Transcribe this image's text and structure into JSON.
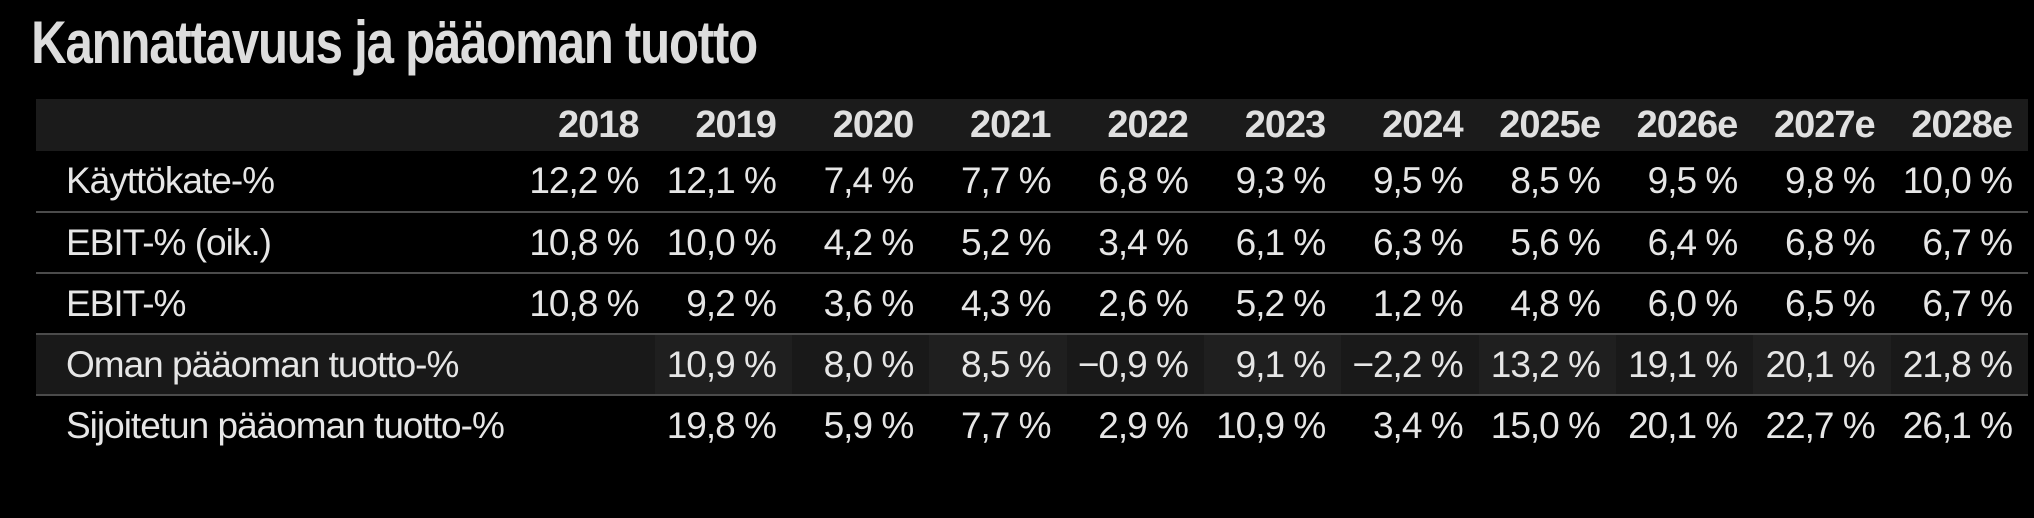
{
  "page": {
    "title": "Kannattavuus ja pääoman tuotto",
    "colors": {
      "background": "#000000",
      "header_row_bg": "#1b1b1b",
      "highlight_row_bg": "#191919",
      "highlight_row_alt_cell_bg": "#1f1f1f",
      "text": "#e6e6e6",
      "divider": "#4b4b4b"
    }
  },
  "chart_data": {
    "type": "table",
    "title": "Kannattavuus ja pääoman tuotto",
    "columns": [
      "",
      "2018",
      "2019",
      "2020",
      "2021",
      "2022",
      "2023",
      "2024",
      "2025e",
      "2026e",
      "2027e",
      "2028e"
    ],
    "rows": [
      {
        "label": "Käyttökate-%",
        "highlighted": false,
        "values": [
          "12,2 %",
          "12,1 %",
          "7,4 %",
          "7,7 %",
          "6,8 %",
          "9,3 %",
          "9,5 %",
          "8,5 %",
          "9,5 %",
          "9,8 %",
          "10,0 %"
        ]
      },
      {
        "label": "EBIT-% (oik.)",
        "highlighted": false,
        "values": [
          "10,8 %",
          "10,0 %",
          "4,2 %",
          "5,2 %",
          "3,4 %",
          "6,1 %",
          "6,3 %",
          "5,6 %",
          "6,4 %",
          "6,8 %",
          "6,7 %"
        ]
      },
      {
        "label": "EBIT-%",
        "highlighted": false,
        "values": [
          "10,8 %",
          "9,2 %",
          "3,6 %",
          "4,3 %",
          "2,6 %",
          "5,2 %",
          "1,2 %",
          "4,8 %",
          "6,0 %",
          "6,5 %",
          "6,7 %"
        ]
      },
      {
        "label": "Oman pääoman tuotto-%",
        "highlighted": true,
        "values": [
          "",
          "10,9 %",
          "8,0 %",
          "8,5 %",
          "−0,9 %",
          "9,1 %",
          "−2,2 %",
          "13,2 %",
          "19,1 %",
          "20,1 %",
          "21,8 %"
        ]
      },
      {
        "label": "Sijoitetun pääoman tuotto-%",
        "highlighted": false,
        "values": [
          "",
          "19,8 %",
          "5,9 %",
          "7,7 %",
          "2,9 %",
          "10,9 %",
          "3,4 %",
          "15,0 %",
          "20,1 %",
          "22,7 %",
          "26,1 %"
        ]
      }
    ]
  }
}
